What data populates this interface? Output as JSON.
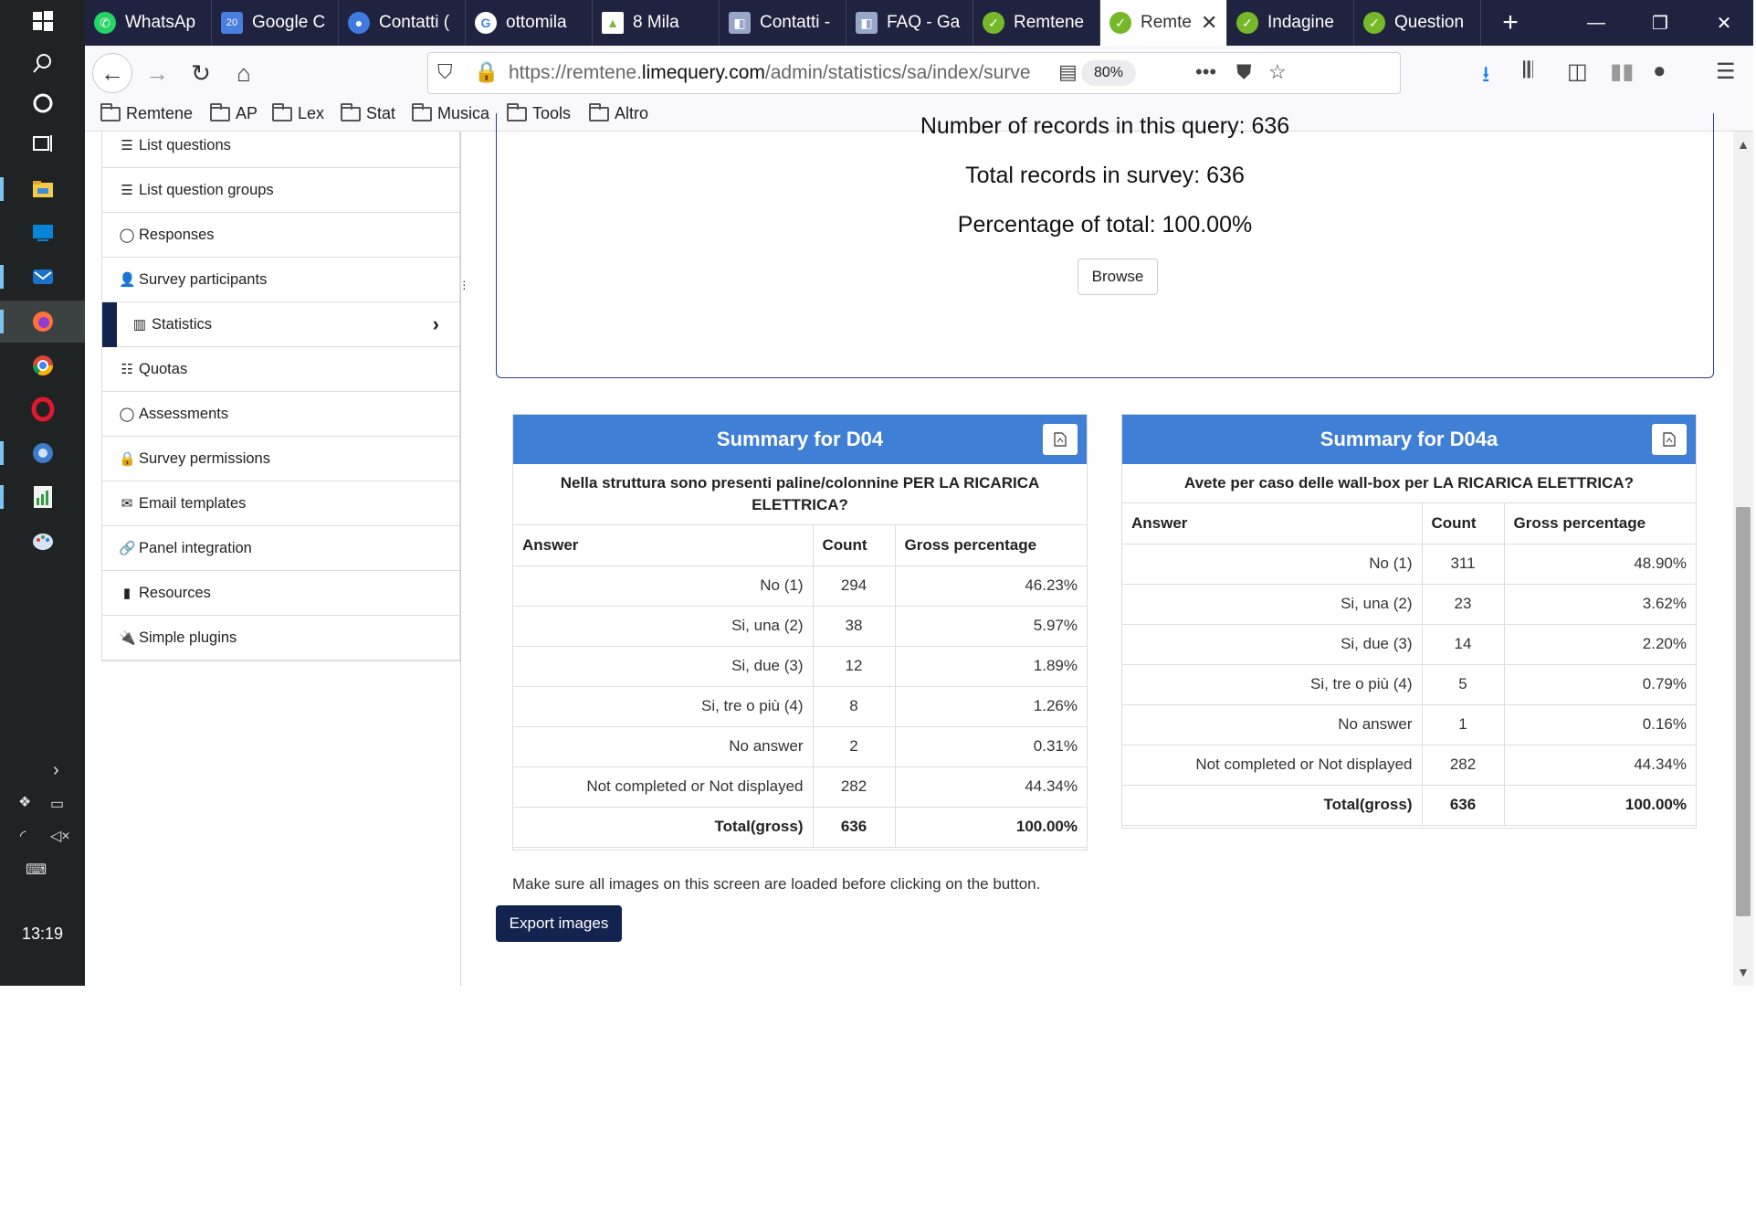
{
  "taskbar": {
    "clock": "13:19",
    "icons": [
      "windows-start-icon",
      "search-icon",
      "cortana-icon",
      "task-view-icon",
      "file-explorer-icon",
      "desktop-icon",
      "mail-icon",
      "firefox-icon",
      "chrome-icon",
      "opera-icon",
      "app-icon",
      "spreadsheet-icon",
      "paint-icon"
    ]
  },
  "browser": {
    "tabs": [
      {
        "label": "WhatsAp",
        "icon": "whatsapp-icon",
        "color": "#25d366"
      },
      {
        "label": "Google C",
        "icon": "calendar-icon",
        "color": "#4a7de0"
      },
      {
        "label": "Contatti (",
        "icon": "contacts-icon",
        "color": "#3e7ae0"
      },
      {
        "label": "ottomila",
        "icon": "google-icon",
        "color": "#ffffff"
      },
      {
        "label": "8 Mila",
        "icon": "chart-icon",
        "color": "#7cb342"
      },
      {
        "label": "Contatti -",
        "icon": "page-icon",
        "color": "#9aa6c8"
      },
      {
        "label": "FAQ - Ga",
        "icon": "page-icon",
        "color": "#9aa6c8"
      },
      {
        "label": "Remtene",
        "icon": "limesurvey-icon",
        "color": "#76b82a"
      },
      {
        "label": "Remte",
        "icon": "limesurvey-icon",
        "color": "#76b82a"
      },
      {
        "label": "Indagine",
        "icon": "limesurvey-icon",
        "color": "#76b82a"
      },
      {
        "label": "Question",
        "icon": "limesurvey-icon",
        "color": "#76b82a"
      }
    ],
    "url_prefix": "https://remtene.",
    "url_domain": "limequery.com",
    "url_path": "/admin/statistics/sa/index/surve",
    "zoom": "80%",
    "bookmarks": [
      "Remtene",
      "AP",
      "Lex",
      "Stat",
      "Musica",
      "Tools",
      "Altro"
    ]
  },
  "sidebar": {
    "items": [
      {
        "label": "List questions",
        "icon": "list-icon"
      },
      {
        "label": "List question groups",
        "icon": "list-icon"
      },
      {
        "label": "Responses",
        "icon": "comment-icon"
      },
      {
        "label": "Survey participants",
        "icon": "user-icon"
      },
      {
        "label": "Statistics",
        "icon": "bar-chart-icon"
      },
      {
        "label": "Quotas",
        "icon": "tasks-icon"
      },
      {
        "label": "Assessments",
        "icon": "comment-icon"
      },
      {
        "label": "Survey permissions",
        "icon": "lock-icon"
      },
      {
        "label": "Email templates",
        "icon": "envelope-icon"
      },
      {
        "label": "Panel integration",
        "icon": "link-icon"
      },
      {
        "label": "Resources",
        "icon": "file-icon"
      },
      {
        "label": "Simple plugins",
        "icon": "plug-icon"
      }
    ]
  },
  "records": {
    "query_count": "Number of records in this query: 636",
    "total_count": "Total records in survey: 636",
    "percentage": "Percentage of total: 100.00%",
    "browse_label": "Browse"
  },
  "summaries": [
    {
      "title": "Summary for D04",
      "question": "Nella struttura sono presenti paline/colonnine PER LA RICARICA ELETTRICA?",
      "headers": [
        "Answer",
        "Count",
        "Gross percentage"
      ],
      "rows": [
        [
          "No (1)",
          "294",
          "46.23%"
        ],
        [
          "Si, una (2)",
          "38",
          "5.97%"
        ],
        [
          "Si, due (3)",
          "12",
          "1.89%"
        ],
        [
          "Si, tre o più (4)",
          "8",
          "1.26%"
        ],
        [
          "No answer",
          "2",
          "0.31%"
        ],
        [
          "Not completed or Not displayed",
          "282",
          "44.34%"
        ]
      ],
      "total": [
        "Total(gross)",
        "636",
        "100.00%"
      ]
    },
    {
      "title": "Summary for D04a",
      "question": "Avete per caso delle wall-box per LA RICARICA ELETTRICA?",
      "headers": [
        "Answer",
        "Count",
        "Gross percentage"
      ],
      "rows": [
        [
          "No (1)",
          "311",
          "48.90%"
        ],
        [
          "Si, una (2)",
          "23",
          "3.62%"
        ],
        [
          "Si, due (3)",
          "14",
          "2.20%"
        ],
        [
          "Si, tre o più (4)",
          "5",
          "0.79%"
        ],
        [
          "No answer",
          "1",
          "0.16%"
        ],
        [
          "Not completed or Not displayed",
          "282",
          "44.34%"
        ]
      ],
      "total": [
        "Total(gross)",
        "636",
        "100.00%"
      ]
    }
  ],
  "note": "Make sure all images on this screen are loaded before clicking on the button.",
  "export_label": "Export images",
  "colors": {
    "header_blue": "#3f7fd6",
    "accent_navy": "#12234f",
    "tabbar": "#202340"
  }
}
